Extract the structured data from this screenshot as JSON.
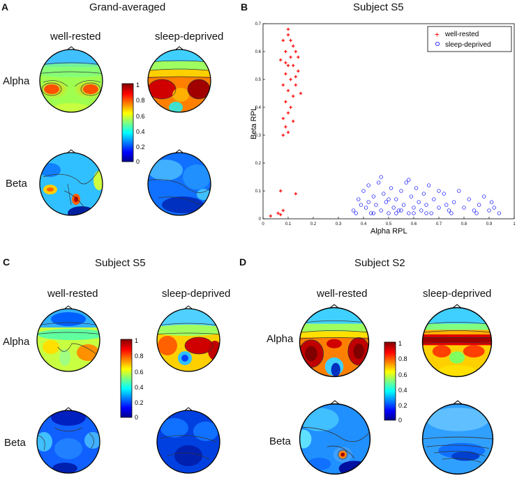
{
  "panels": {
    "A": {
      "letter": "A",
      "title": "Grand-averaged",
      "col1": "well-rested",
      "col2": "sleep-deprived",
      "row1": "Alpha",
      "row2": "Beta"
    },
    "B": {
      "letter": "B",
      "title": "Subject S5"
    },
    "C": {
      "letter": "C",
      "title": "Subject S5",
      "col1": "well-rested",
      "col2": "sleep-deprived",
      "row1": "Alpha",
      "row2": "Beta"
    },
    "D": {
      "letter": "D",
      "title": "Subject S2",
      "col1": "well-rested",
      "col2": "sleep-deprived",
      "row1": "Alpha",
      "row2": "Beta"
    }
  },
  "colorbar": {
    "ticks": [
      "1",
      "0.8",
      "0.6",
      "0.4",
      "0.2",
      "0"
    ]
  },
  "colors": {
    "well_rested": "#ff0000",
    "sleep_deprived": "#0000ff"
  },
  "chart_data": {
    "type": "scatter",
    "title": "Subject S5",
    "xlabel": "Alpha RPL",
    "ylabel": "Beta RPL",
    "xlim": [
      0,
      1
    ],
    "ylim": [
      0,
      0.7
    ],
    "xticks": [
      "0",
      "0.1",
      "0.2",
      "0.3",
      "0.4",
      "0.5",
      "0.6",
      "0.7",
      "0.8",
      "0.9",
      "1"
    ],
    "yticks": [
      "0",
      "0.1",
      "0.2",
      "0.3",
      "0.4",
      "0.5",
      "0.6",
      "0.7"
    ],
    "legend": {
      "position": "top-right",
      "entries": [
        "well-rested",
        "sleep-deprived"
      ]
    },
    "series": [
      {
        "name": "well-rested",
        "marker": "+",
        "color": "#ff0000",
        "points": [
          [
            0.08,
            0.64
          ],
          [
            0.1,
            0.66
          ],
          [
            0.12,
            0.62
          ],
          [
            0.09,
            0.6
          ],
          [
            0.11,
            0.58
          ],
          [
            0.13,
            0.6
          ],
          [
            0.07,
            0.57
          ],
          [
            0.1,
            0.55
          ],
          [
            0.12,
            0.55
          ],
          [
            0.14,
            0.53
          ],
          [
            0.09,
            0.52
          ],
          [
            0.11,
            0.5
          ],
          [
            0.08,
            0.48
          ],
          [
            0.13,
            0.48
          ],
          [
            0.1,
            0.46
          ],
          [
            0.12,
            0.44
          ],
          [
            0.09,
            0.42
          ],
          [
            0.11,
            0.4
          ],
          [
            0.1,
            0.38
          ],
          [
            0.08,
            0.36
          ],
          [
            0.12,
            0.35
          ],
          [
            0.09,
            0.33
          ],
          [
            0.1,
            0.31
          ],
          [
            0.08,
            0.3
          ],
          [
            0.15,
            0.45
          ],
          [
            0.14,
            0.58
          ],
          [
            0.1,
            0.68
          ],
          [
            0.11,
            0.64
          ],
          [
            0.09,
            0.56
          ],
          [
            0.13,
            0.51
          ],
          [
            0.07,
            0.1
          ],
          [
            0.13,
            0.09
          ],
          [
            0.06,
            0.02
          ],
          [
            0.07,
            0.015
          ],
          [
            0.03,
            0.01
          ],
          [
            0.08,
            0.03
          ]
        ]
      },
      {
        "name": "sleep-deprived",
        "marker": "o",
        "color": "#0000ff",
        "points": [
          [
            0.36,
            0.03
          ],
          [
            0.38,
            0.07
          ],
          [
            0.4,
            0.1
          ],
          [
            0.41,
            0.04
          ],
          [
            0.42,
            0.12
          ],
          [
            0.43,
            0.02
          ],
          [
            0.44,
            0.08
          ],
          [
            0.45,
            0.05
          ],
          [
            0.46,
            0.13
          ],
          [
            0.47,
            0.03
          ],
          [
            0.48,
            0.09
          ],
          [
            0.49,
            0.06
          ],
          [
            0.5,
            0.02
          ],
          [
            0.51,
            0.11
          ],
          [
            0.52,
            0.04
          ],
          [
            0.53,
            0.07
          ],
          [
            0.54,
            0.03
          ],
          [
            0.55,
            0.1
          ],
          [
            0.56,
            0.05
          ],
          [
            0.57,
            0.13
          ],
          [
            0.58,
            0.02
          ],
          [
            0.59,
            0.08
          ],
          [
            0.6,
            0.04
          ],
          [
            0.61,
            0.11
          ],
          [
            0.62,
            0.06
          ],
          [
            0.63,
            0.03
          ],
          [
            0.64,
            0.09
          ],
          [
            0.65,
            0.05
          ],
          [
            0.66,
            0.12
          ],
          [
            0.67,
            0.02
          ],
          [
            0.68,
            0.07
          ],
          [
            0.7,
            0.04
          ],
          [
            0.72,
            0.09
          ],
          [
            0.74,
            0.03
          ],
          [
            0.76,
            0.06
          ],
          [
            0.78,
            0.1
          ],
          [
            0.8,
            0.04
          ],
          [
            0.82,
            0.07
          ],
          [
            0.84,
            0.03
          ],
          [
            0.86,
            0.05
          ],
          [
            0.88,
            0.08
          ],
          [
            0.9,
            0.03
          ],
          [
            0.92,
            0.04
          ],
          [
            0.94,
            0.02
          ],
          [
            0.39,
            0.05
          ],
          [
            0.44,
            0.02
          ],
          [
            0.47,
            0.15
          ],
          [
            0.53,
            0.02
          ],
          [
            0.58,
            0.14
          ],
          [
            0.65,
            0.02
          ],
          [
            0.7,
            0.1
          ],
          [
            0.75,
            0.02
          ],
          [
            0.42,
            0.06
          ],
          [
            0.5,
            0.07
          ],
          [
            0.6,
            0.02
          ],
          [
            0.73,
            0.05
          ],
          [
            0.85,
            0.02
          ],
          [
            0.91,
            0.06
          ],
          [
            0.37,
            0.02
          ],
          [
            0.55,
            0.03
          ]
        ]
      }
    ]
  }
}
